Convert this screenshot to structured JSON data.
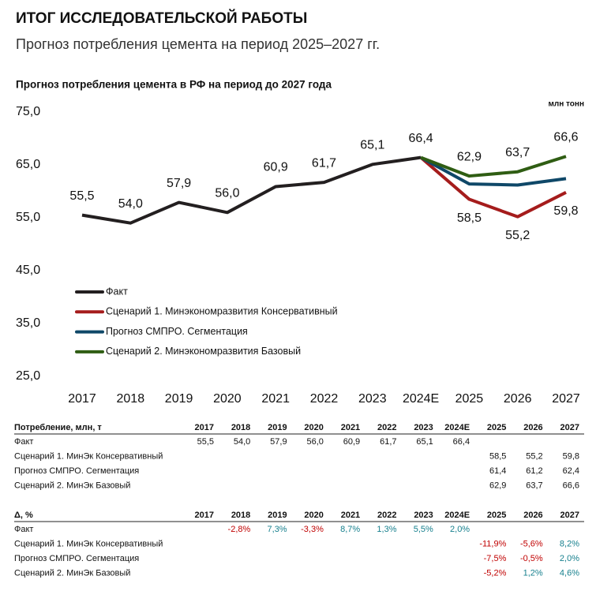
{
  "header": {
    "title": "ИТОГ ИССЛЕДОВАТЕЛЬСКОЙ РАБОТЫ",
    "subtitle": "Прогноз потребления цемента на период 2025–2027 гг."
  },
  "chart_data": {
    "type": "line",
    "title": "Прогноз потребления цемента в РФ на период до 2027 года",
    "unit_label": "млн тонн",
    "categories": [
      "2017",
      "2018",
      "2019",
      "2020",
      "2021",
      "2022",
      "2023",
      "2024E",
      "2025",
      "2026",
      "2027"
    ],
    "series": [
      {
        "name": "Факт",
        "color": "#231f20",
        "values": [
          55.5,
          54.0,
          57.9,
          56.0,
          60.9,
          61.7,
          65.1,
          66.4,
          null,
          null,
          null
        ],
        "value_labels": [
          "55,5",
          "54,0",
          "57,9",
          "56,0",
          "60,9",
          "61,7",
          "65,1",
          "66,4",
          null,
          null,
          null
        ],
        "label_side": "above"
      },
      {
        "name": "Сценарий 1. Минэкономразвития Консервативный",
        "color": "#a51c1c",
        "values": [
          null,
          null,
          null,
          null,
          null,
          null,
          null,
          66.4,
          58.5,
          55.2,
          59.8
        ],
        "value_labels": [
          null,
          null,
          null,
          null,
          null,
          null,
          null,
          null,
          "58,5",
          "55,2",
          "59,8"
        ],
        "label_side": "below"
      },
      {
        "name": "Прогноз СМПРО. Сегментация",
        "color": "#0f4868",
        "values": [
          null,
          null,
          null,
          null,
          null,
          null,
          null,
          66.4,
          61.4,
          61.2,
          62.4
        ]
      },
      {
        "name": "Сценарий 2. Минэкономразвития Базовый",
        "color": "#2f5d13",
        "values": [
          null,
          null,
          null,
          null,
          null,
          null,
          null,
          66.4,
          62.9,
          63.7,
          66.6
        ],
        "value_labels": [
          null,
          null,
          null,
          null,
          null,
          null,
          null,
          null,
          "62,9",
          "63,7",
          "66,6"
        ],
        "label_side": "above"
      }
    ],
    "ylim": [
      25,
      75
    ],
    "yticks": [
      {
        "value": 25,
        "label": "25,0"
      },
      {
        "value": 35,
        "label": "35,0"
      },
      {
        "value": 45,
        "label": "45,0"
      },
      {
        "value": 55,
        "label": "55,0"
      },
      {
        "value": 65,
        "label": "65,0"
      },
      {
        "value": 75,
        "label": "75,0"
      }
    ],
    "grid": false,
    "legend": "left"
  },
  "tables": [
    {
      "header": [
        "Потребление, млн, т",
        "2017",
        "2018",
        "2019",
        "2020",
        "2021",
        "2022",
        "2023",
        "2024E",
        "2025",
        "2026",
        "2027"
      ],
      "rows": [
        {
          "label": "Факт",
          "cells": [
            "55,5",
            "54,0",
            "57,9",
            "56,0",
            "60,9",
            "61,7",
            "65,1",
            "66,4",
            null,
            null,
            null
          ]
        },
        {
          "label": "Сценарий 1. МинЭк Консервативный",
          "cells": [
            null,
            null,
            null,
            null,
            null,
            null,
            null,
            null,
            "58,5",
            "55,2",
            "59,8"
          ]
        },
        {
          "label": "Прогноз СМПРО. Сегментация",
          "cells": [
            null,
            null,
            null,
            null,
            null,
            null,
            null,
            null,
            "61,4",
            "61,2",
            "62,4"
          ]
        },
        {
          "label": "Сценарий 2. МинЭк Базовый",
          "cells": [
            null,
            null,
            null,
            null,
            null,
            null,
            null,
            null,
            "62,9",
            "63,7",
            "66,6"
          ]
        }
      ]
    },
    {
      "header": [
        "Δ, %",
        "2017",
        "2018",
        "2019",
        "2020",
        "2021",
        "2022",
        "2023",
        "2024E",
        "2025",
        "2026",
        "2027"
      ],
      "rows": [
        {
          "label": "Факт",
          "cells": [
            null,
            "-2,8%",
            "7,3%",
            "-3,3%",
            "8,7%",
            "1,3%",
            "5,5%",
            "2,0%",
            null,
            null,
            null
          ]
        },
        {
          "label": "Сценарий 1. МинЭк Консервативный",
          "cells": [
            null,
            null,
            null,
            null,
            null,
            null,
            null,
            null,
            "-11,9%",
            "-5,6%",
            "8,2%"
          ]
        },
        {
          "label": "Прогноз СМПРО. Сегментация",
          "cells": [
            null,
            null,
            null,
            null,
            null,
            null,
            null,
            null,
            "-7,5%",
            "-0,5%",
            "2,0%"
          ]
        },
        {
          "label": "Сценарий 2. МинЭк Базовый",
          "cells": [
            null,
            null,
            null,
            null,
            null,
            null,
            null,
            null,
            "-5,2%",
            "1,2%",
            "4,6%"
          ]
        }
      ]
    }
  ]
}
